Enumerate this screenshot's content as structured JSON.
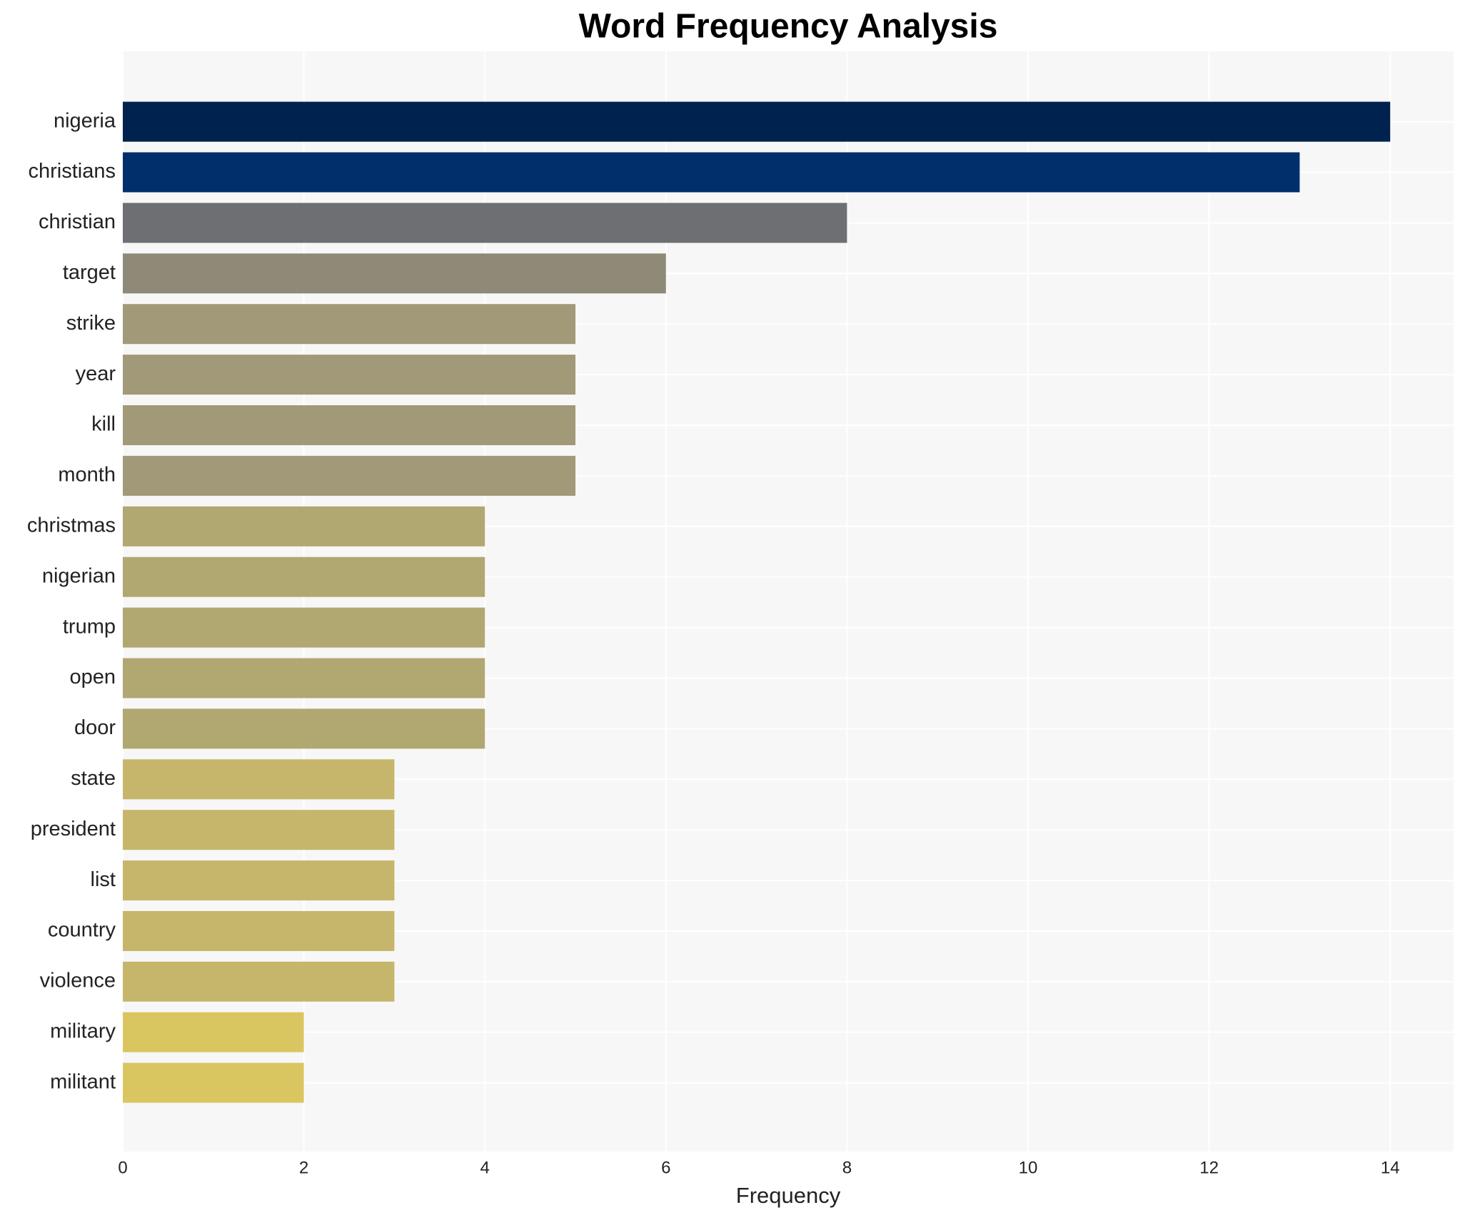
{
  "chart_data": {
    "type": "bar",
    "orientation": "horizontal",
    "title": "Word Frequency Analysis",
    "xlabel": "Frequency",
    "categories": [
      "nigeria",
      "christians",
      "christian",
      "target",
      "strike",
      "year",
      "kill",
      "month",
      "christmas",
      "nigerian",
      "trump",
      "open",
      "door",
      "state",
      "president",
      "list",
      "country",
      "violence",
      "military",
      "militant"
    ],
    "values": [
      14,
      13,
      8,
      6,
      5,
      5,
      5,
      5,
      4,
      4,
      4,
      4,
      4,
      3,
      3,
      3,
      3,
      3,
      2,
      2
    ],
    "colors": [
      "#00224e",
      "#002f6c",
      "#6e6f73",
      "#8f8a77",
      "#a19977",
      "#a19977",
      "#a19977",
      "#a19977",
      "#b1a771",
      "#b1a771",
      "#b1a771",
      "#b1a771",
      "#b1a771",
      "#c5b66b",
      "#c5b66b",
      "#c5b66b",
      "#c5b66b",
      "#c5b66b",
      "#dac661",
      "#dac661"
    ],
    "xlim": [
      0,
      14.7
    ],
    "xticks": [
      0,
      2,
      4,
      6,
      8,
      10,
      12,
      14
    ],
    "grid": true
  }
}
